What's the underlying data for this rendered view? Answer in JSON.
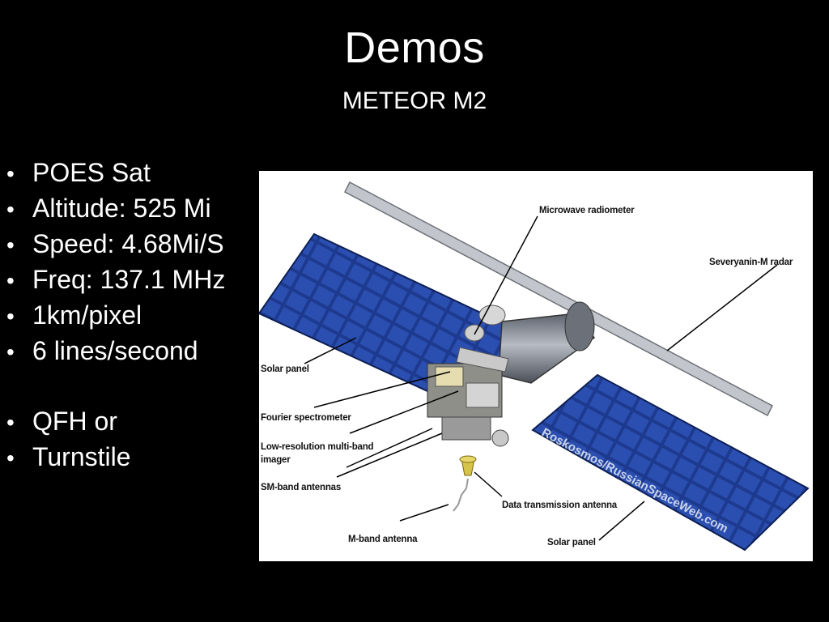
{
  "slide": {
    "title": "Demos",
    "subtitle": "METEOR M2"
  },
  "bullets_primary": [
    "POES Sat",
    "Altitude: 525 Mi",
    "Speed: 4.68Mi/S",
    "Freq: 137.1 MHz",
    "1km/pixel",
    "6 lines/second"
  ],
  "bullets_antenna": [
    "QFH or",
    "Turnstile"
  ],
  "figure": {
    "callouts": {
      "microwave_radiometer": "Microwave radiometer",
      "severyanin_radar": "Severyanin-M radar",
      "solar_panel_left": "Solar panel",
      "fourier_spectrometer": "Fourier spectrometer",
      "low_res_line1": "Low-resolution multi-band",
      "low_res_line2": "imager",
      "sm_band_antennas": "SM-band antennas",
      "data_transmission_antenna": "Data transmission antenna",
      "m_band_antenna": "M-band antenna",
      "solar_panel_right": "Solar panel"
    },
    "watermark": "Roskosmos/RussianSpaceWeb.com",
    "colors": {
      "panel": "#1d3a8f",
      "panel_cell": "#2a4fb0",
      "body": "#7b8290",
      "boom": "#b9bcc2"
    }
  }
}
